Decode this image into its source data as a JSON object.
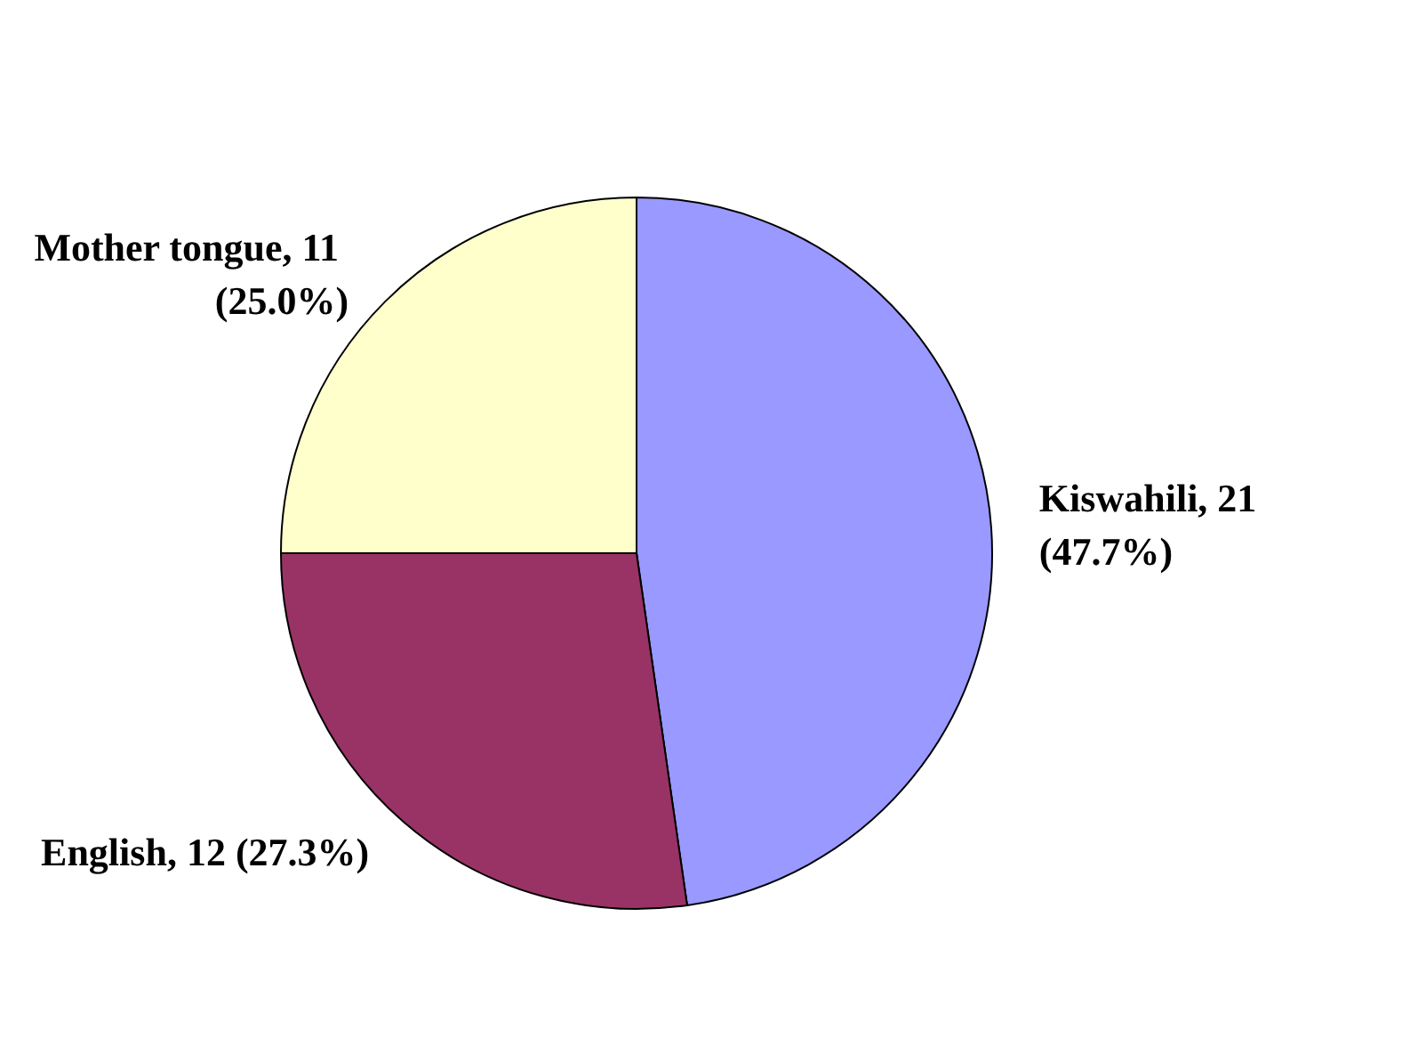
{
  "chart_data": {
    "type": "pie",
    "categories": [
      "Kiswahili",
      "English",
      "Mother tongue"
    ],
    "values": [
      21,
      12,
      11
    ],
    "colors": [
      "#9999ff",
      "#993366",
      "#ffffcc"
    ],
    "value_labels": [
      "21 (47.7%)",
      "12 (27.3%)",
      "11 (25.0%)"
    ],
    "legend": false
  }
}
